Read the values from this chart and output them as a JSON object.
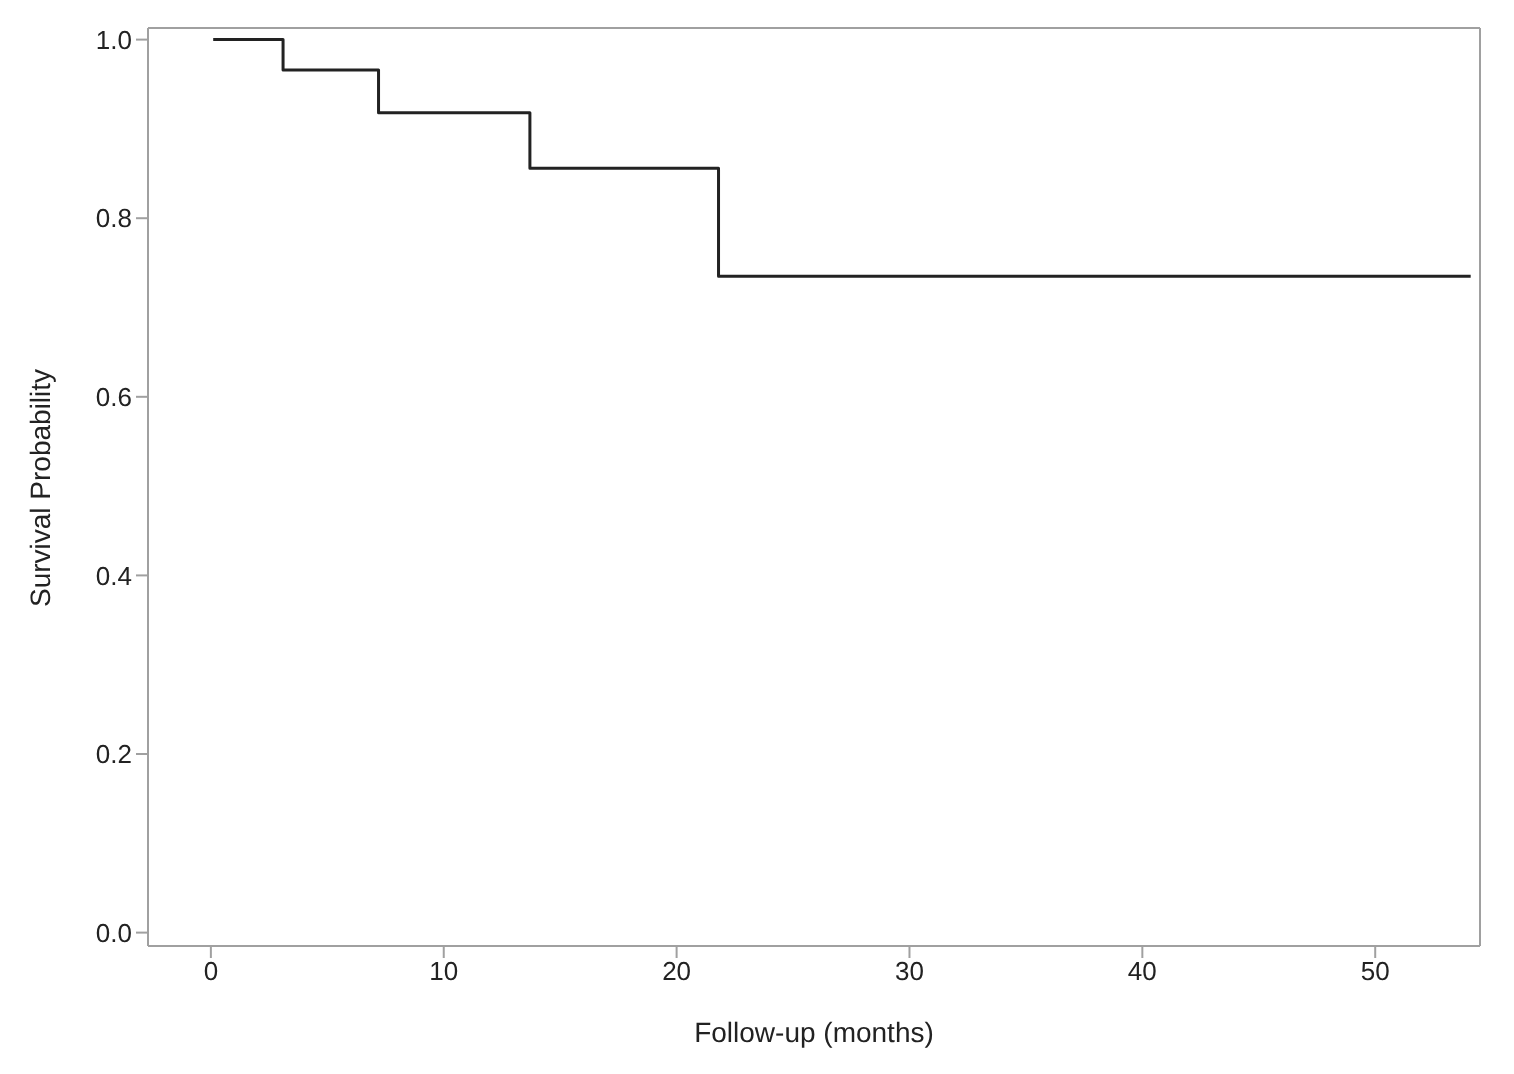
{
  "chart_data": {
    "type": "step",
    "xlabel": "Follow-up (months)",
    "ylabel": "Survival Probability",
    "x": [
      0.1,
      3.1,
      7.2,
      13.7,
      21.8,
      54.1
    ],
    "series": [
      {
        "color": "#222222",
        "values": [
          1.0,
          0.966,
          0.918,
          0.856,
          0.735,
          0.735
        ]
      }
    ],
    "xlim": [
      -2.7,
      54.5
    ],
    "xticks": [
      0,
      10,
      20,
      30,
      40,
      50
    ],
    "ylim": [
      -0.015,
      1.013
    ],
    "yticks": [
      {
        "value": 0,
        "label": "0.0"
      },
      {
        "value": 0.2,
        "label": "0.2"
      },
      {
        "value": 0.4,
        "label": "0.4"
      },
      {
        "value": 0.6,
        "label": "0.6"
      },
      {
        "value": 0.8,
        "label": "0.8"
      },
      {
        "value": 1,
        "label": "1.0"
      }
    ],
    "grid": false,
    "legend": false,
    "marker": "none",
    "line_style": "solid"
  }
}
